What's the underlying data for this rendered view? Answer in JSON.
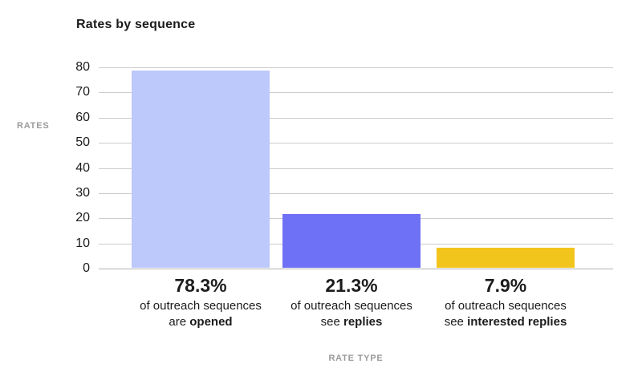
{
  "title": "Rates by sequence",
  "y_axis": {
    "label": "RATES"
  },
  "x_axis": {
    "label": "RATE TYPE"
  },
  "colors": {
    "bar_opened": "#bdc9fa",
    "bar_replies": "#6e70f5",
    "bar_interested": "#f2c51d",
    "gridline": "#cccccc",
    "baseline": "#b3b3b3",
    "axis_caption": "#9b9b9b",
    "text": "#1c1c1c"
  },
  "chart_data": {
    "type": "bar",
    "title": "Rates by sequence",
    "xlabel": "RATE TYPE",
    "ylabel": "RATES",
    "ylim": [
      0,
      80
    ],
    "yticks": [
      0,
      10,
      20,
      30,
      40,
      50,
      60,
      70,
      80
    ],
    "grid": true,
    "legend": false,
    "categories": [
      "opened",
      "replies",
      "interested replies"
    ],
    "values": [
      78.3,
      21.3,
      7.9
    ],
    "bar_colors": [
      "#bdc9fa",
      "#6e70f5",
      "#f2c51d"
    ],
    "bars": [
      {
        "value": 78.3,
        "percent": "78.3%",
        "line2": "of outreach sequences",
        "line3_prefix": "are ",
        "line3_bold": "opened",
        "color": "#bdc9fa"
      },
      {
        "value": 21.3,
        "percent": "21.3%",
        "line2": "of outreach sequences",
        "line3_prefix": "see ",
        "line3_bold": "replies",
        "color": "#6e70f5"
      },
      {
        "value": 7.9,
        "percent": "7.9%",
        "line2": "of outreach sequences",
        "line3_prefix": "see ",
        "line3_bold": "interested replies",
        "color": "#f2c51d"
      }
    ]
  }
}
